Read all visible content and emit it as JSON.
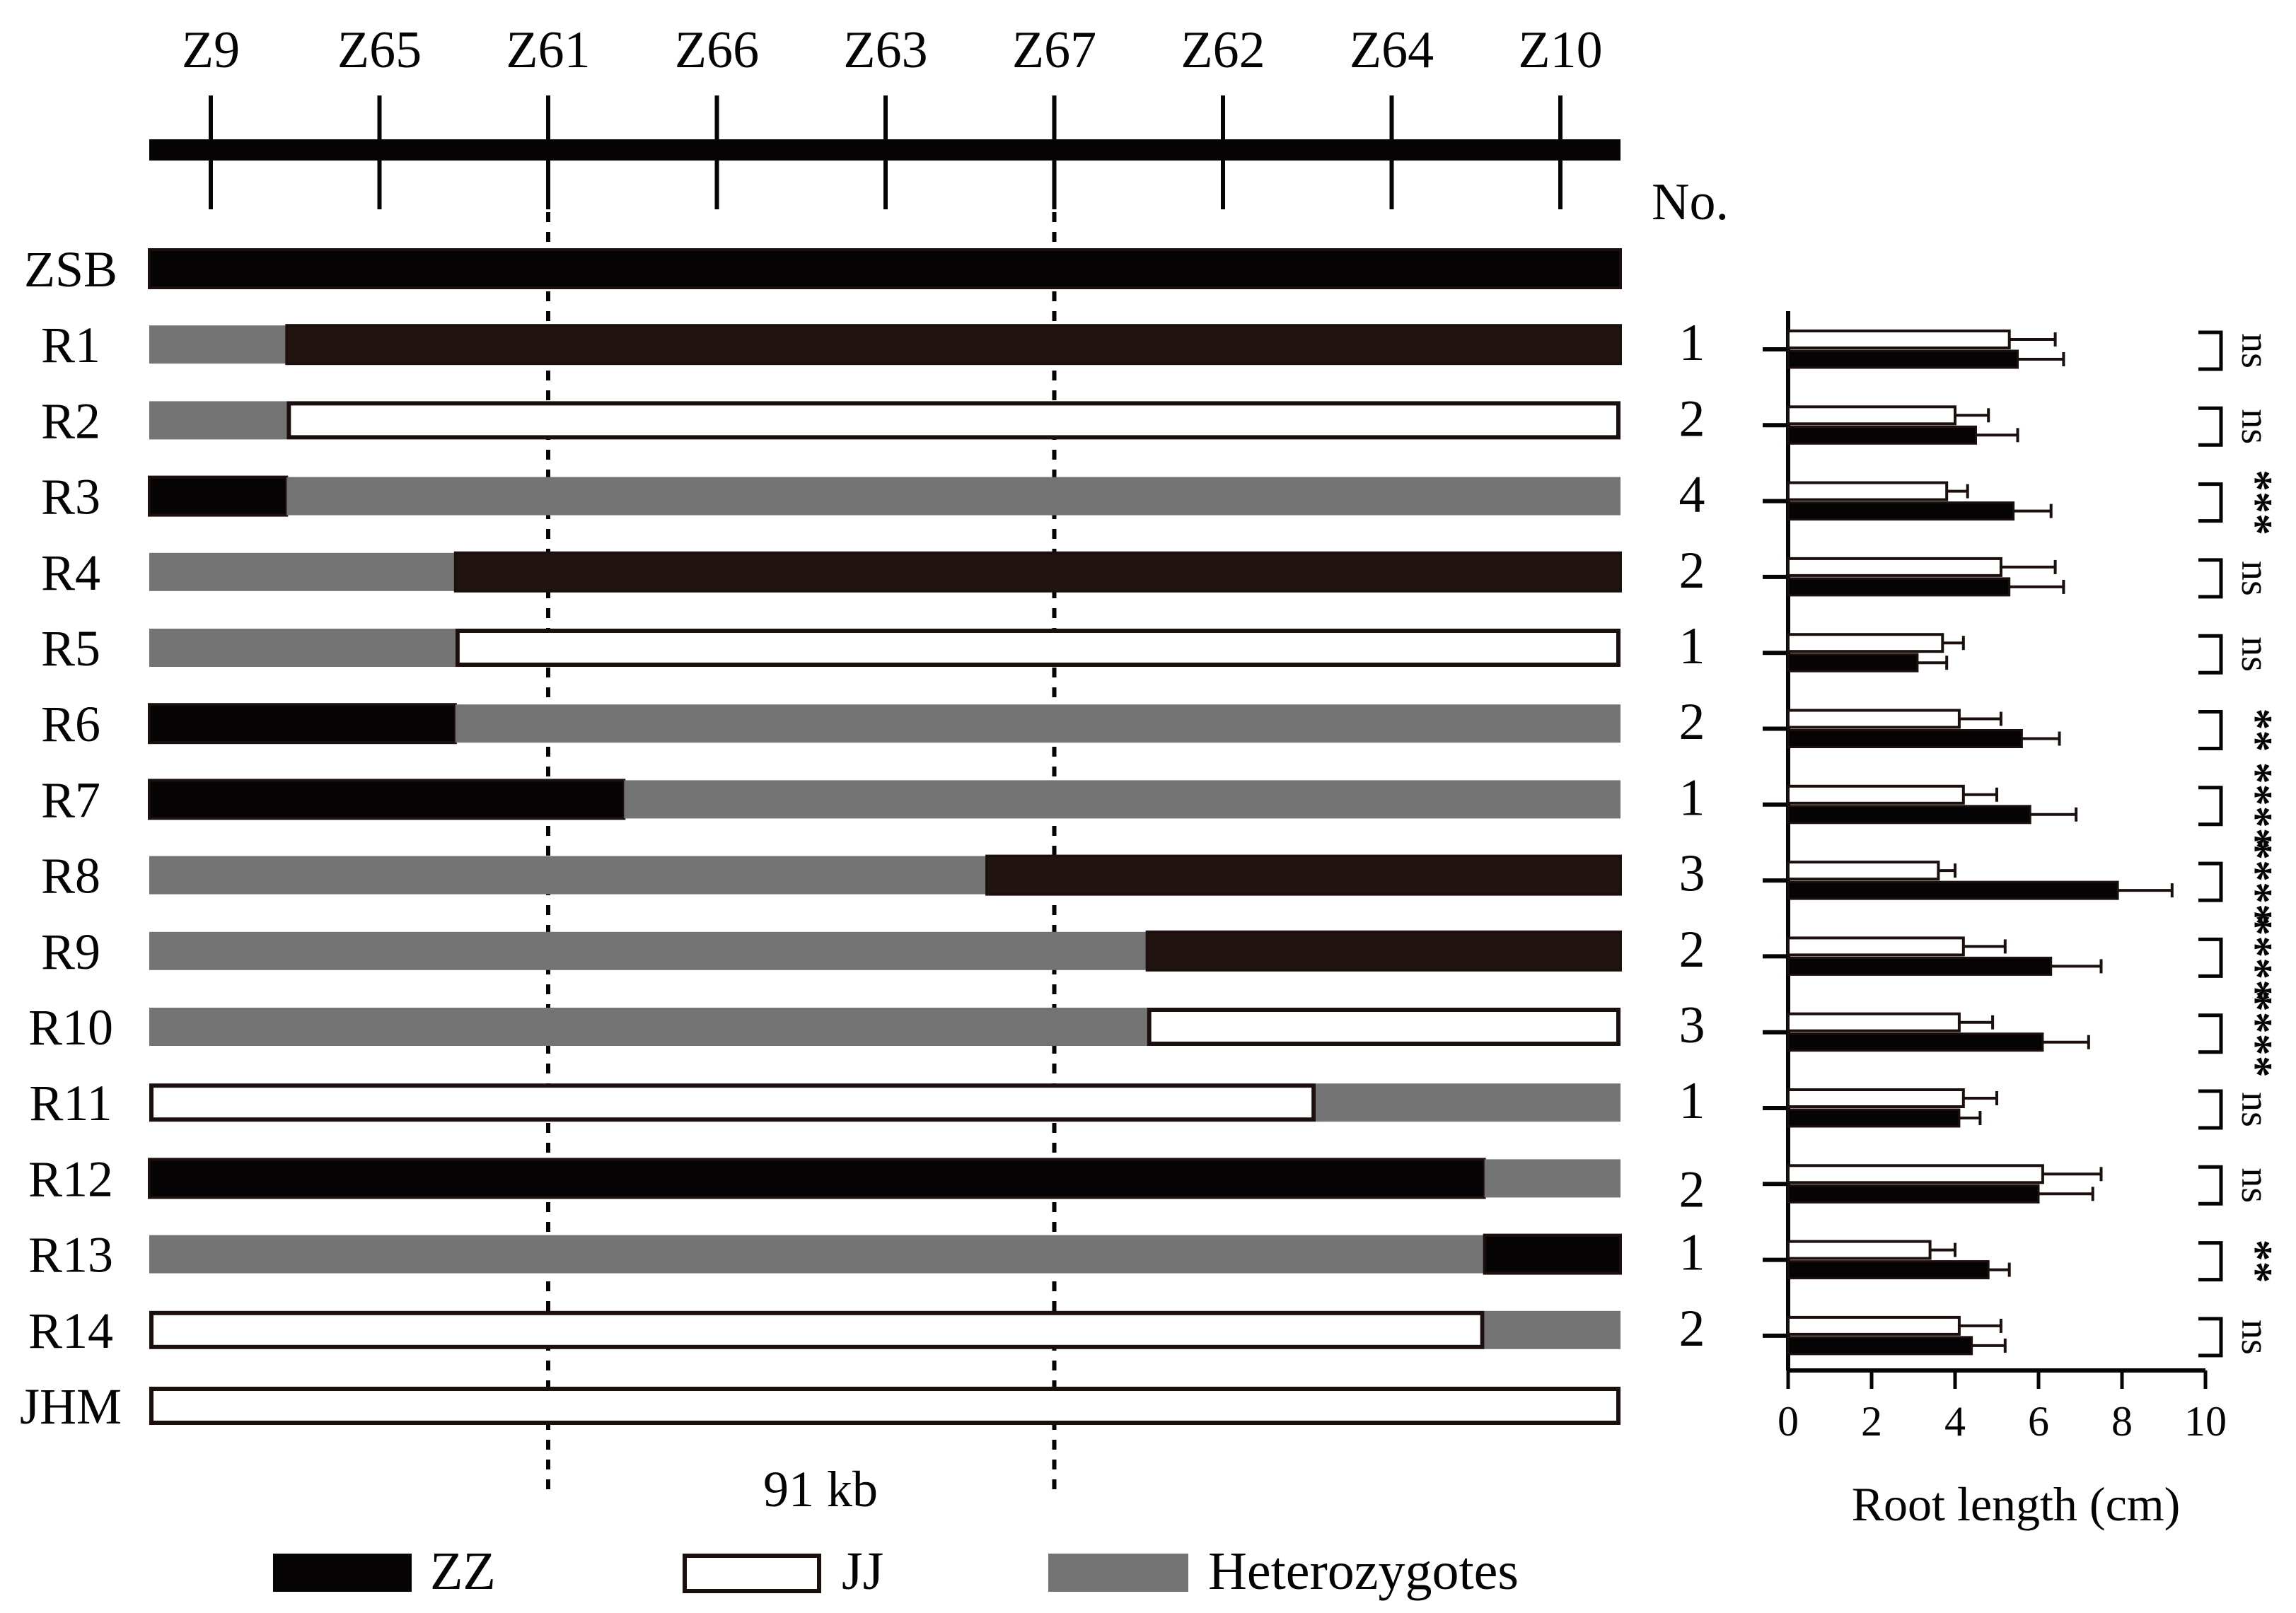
{
  "markers": [
    "Z9",
    "Z65",
    "Z61",
    "Z66",
    "Z63",
    "Z67",
    "Z62",
    "Z64",
    "Z10"
  ],
  "number_header": "No.",
  "interval_label": "91 kb",
  "legend": {
    "zz": "ZZ",
    "jj": "JJ",
    "het": "Heterozygotes"
  },
  "colors": {
    "zz": "#050303",
    "zz_dark": "#221411",
    "jj": "#ffffff",
    "het": "#737373",
    "outline": "#1c100e"
  },
  "rows": [
    {
      "label": "ZSB",
      "no": "",
      "segments": [
        {
          "from": 0,
          "to": 8,
          "g": "ZZ"
        }
      ]
    },
    {
      "label": "R1",
      "no": "1",
      "segments": [
        {
          "from": 0,
          "to": 0.45,
          "g": "Het"
        },
        {
          "from": 0.45,
          "to": 8,
          "g": "ZZ"
        }
      ]
    },
    {
      "label": "R2",
      "no": "2",
      "segments": [
        {
          "from": 0,
          "to": 0.45,
          "g": "Het"
        },
        {
          "from": 0.45,
          "to": 8,
          "g": "JJ"
        }
      ]
    },
    {
      "label": "R3",
      "no": "4",
      "segments": [
        {
          "from": 0,
          "to": 0.45,
          "g": "ZZ"
        },
        {
          "from": 0.45,
          "to": 8,
          "g": "Het"
        }
      ]
    },
    {
      "label": "R4",
      "no": "2",
      "segments": [
        {
          "from": 0,
          "to": 1.45,
          "g": "Het"
        },
        {
          "from": 1.45,
          "to": 8,
          "g": "ZZ"
        }
      ]
    },
    {
      "label": "R5",
      "no": "1",
      "segments": [
        {
          "from": 0,
          "to": 1.45,
          "g": "Het"
        },
        {
          "from": 1.45,
          "to": 8,
          "g": "JJ"
        }
      ]
    },
    {
      "label": "R6",
      "no": "2",
      "segments": [
        {
          "from": 0,
          "to": 1.45,
          "g": "ZZ"
        },
        {
          "from": 1.45,
          "to": 8,
          "g": "Het"
        }
      ]
    },
    {
      "label": "R7",
      "no": "1",
      "segments": [
        {
          "from": 0,
          "to": 2.45,
          "g": "ZZ"
        },
        {
          "from": 2.45,
          "to": 8,
          "g": "Het"
        }
      ]
    },
    {
      "label": "R8",
      "no": "3",
      "segments": [
        {
          "from": 0,
          "to": 4.6,
          "g": "Het"
        },
        {
          "from": 4.6,
          "to": 8,
          "g": "ZZ"
        }
      ]
    },
    {
      "label": "R9",
      "no": "2",
      "segments": [
        {
          "from": 0,
          "to": 5.55,
          "g": "Het"
        },
        {
          "from": 5.55,
          "to": 8,
          "g": "ZZ"
        }
      ]
    },
    {
      "label": "R10",
      "no": "3",
      "segments": [
        {
          "from": 0,
          "to": 5.55,
          "g": "Het"
        },
        {
          "from": 5.55,
          "to": 8,
          "g": "JJ"
        }
      ]
    },
    {
      "label": "R11",
      "no": "1",
      "segments": [
        {
          "from": 0,
          "to": 6.55,
          "g": "JJ"
        },
        {
          "from": 6.55,
          "to": 8,
          "g": "Het"
        }
      ]
    },
    {
      "label": "R12",
      "no": "2",
      "segments": [
        {
          "from": 0,
          "to": 7.55,
          "g": "ZZ"
        },
        {
          "from": 7.55,
          "to": 8,
          "g": "Het"
        }
      ]
    },
    {
      "label": "R13",
      "no": "1",
      "segments": [
        {
          "from": 0,
          "to": 7.55,
          "g": "Het"
        },
        {
          "from": 7.55,
          "to": 8,
          "g": "ZZ"
        }
      ]
    },
    {
      "label": "R14",
      "no": "2",
      "segments": [
        {
          "from": 0,
          "to": 7.55,
          "g": "JJ"
        },
        {
          "from": 7.55,
          "to": 8,
          "g": "Het"
        }
      ]
    },
    {
      "label": "JHM",
      "no": "",
      "segments": [
        {
          "from": 0,
          "to": 8,
          "g": "JJ"
        }
      ]
    }
  ],
  "chart_data": {
    "type": "bar",
    "orientation": "horizontal",
    "categories": [
      "R1",
      "R2",
      "R3",
      "R4",
      "R5",
      "R6",
      "R7",
      "R8",
      "R9",
      "R10",
      "R11",
      "R12",
      "R13",
      "R14"
    ],
    "series": [
      {
        "fill": "#ffffff",
        "values": [
          5.3,
          4.0,
          3.8,
          5.1,
          3.7,
          4.1,
          4.2,
          3.6,
          4.2,
          4.1,
          4.2,
          6.1,
          3.4,
          4.1
        ],
        "errors": [
          1.1,
          0.8,
          0.5,
          1.3,
          0.5,
          1.0,
          0.8,
          0.4,
          1.0,
          0.8,
          0.8,
          1.4,
          0.6,
          1.0
        ]
      },
      {
        "fill": "#050303",
        "values": [
          5.5,
          4.5,
          5.4,
          5.3,
          3.1,
          5.6,
          5.8,
          7.9,
          6.3,
          6.1,
          4.1,
          6.0,
          4.8,
          4.4
        ],
        "errors": [
          1.1,
          1.0,
          0.9,
          1.3,
          0.7,
          0.9,
          1.1,
          1.3,
          1.2,
          1.1,
          0.5,
          1.3,
          0.5,
          0.8
        ]
      }
    ],
    "significance": [
      "ns",
      "ns",
      "***",
      "ns",
      "ns",
      "**",
      "****",
      "****",
      "****",
      "****",
      "ns",
      "ns",
      "**",
      "ns"
    ],
    "xlabel": "Root length (cm)",
    "xlim": [
      0,
      10
    ],
    "xticks": [
      0,
      2,
      4,
      6,
      8,
      10
    ]
  }
}
